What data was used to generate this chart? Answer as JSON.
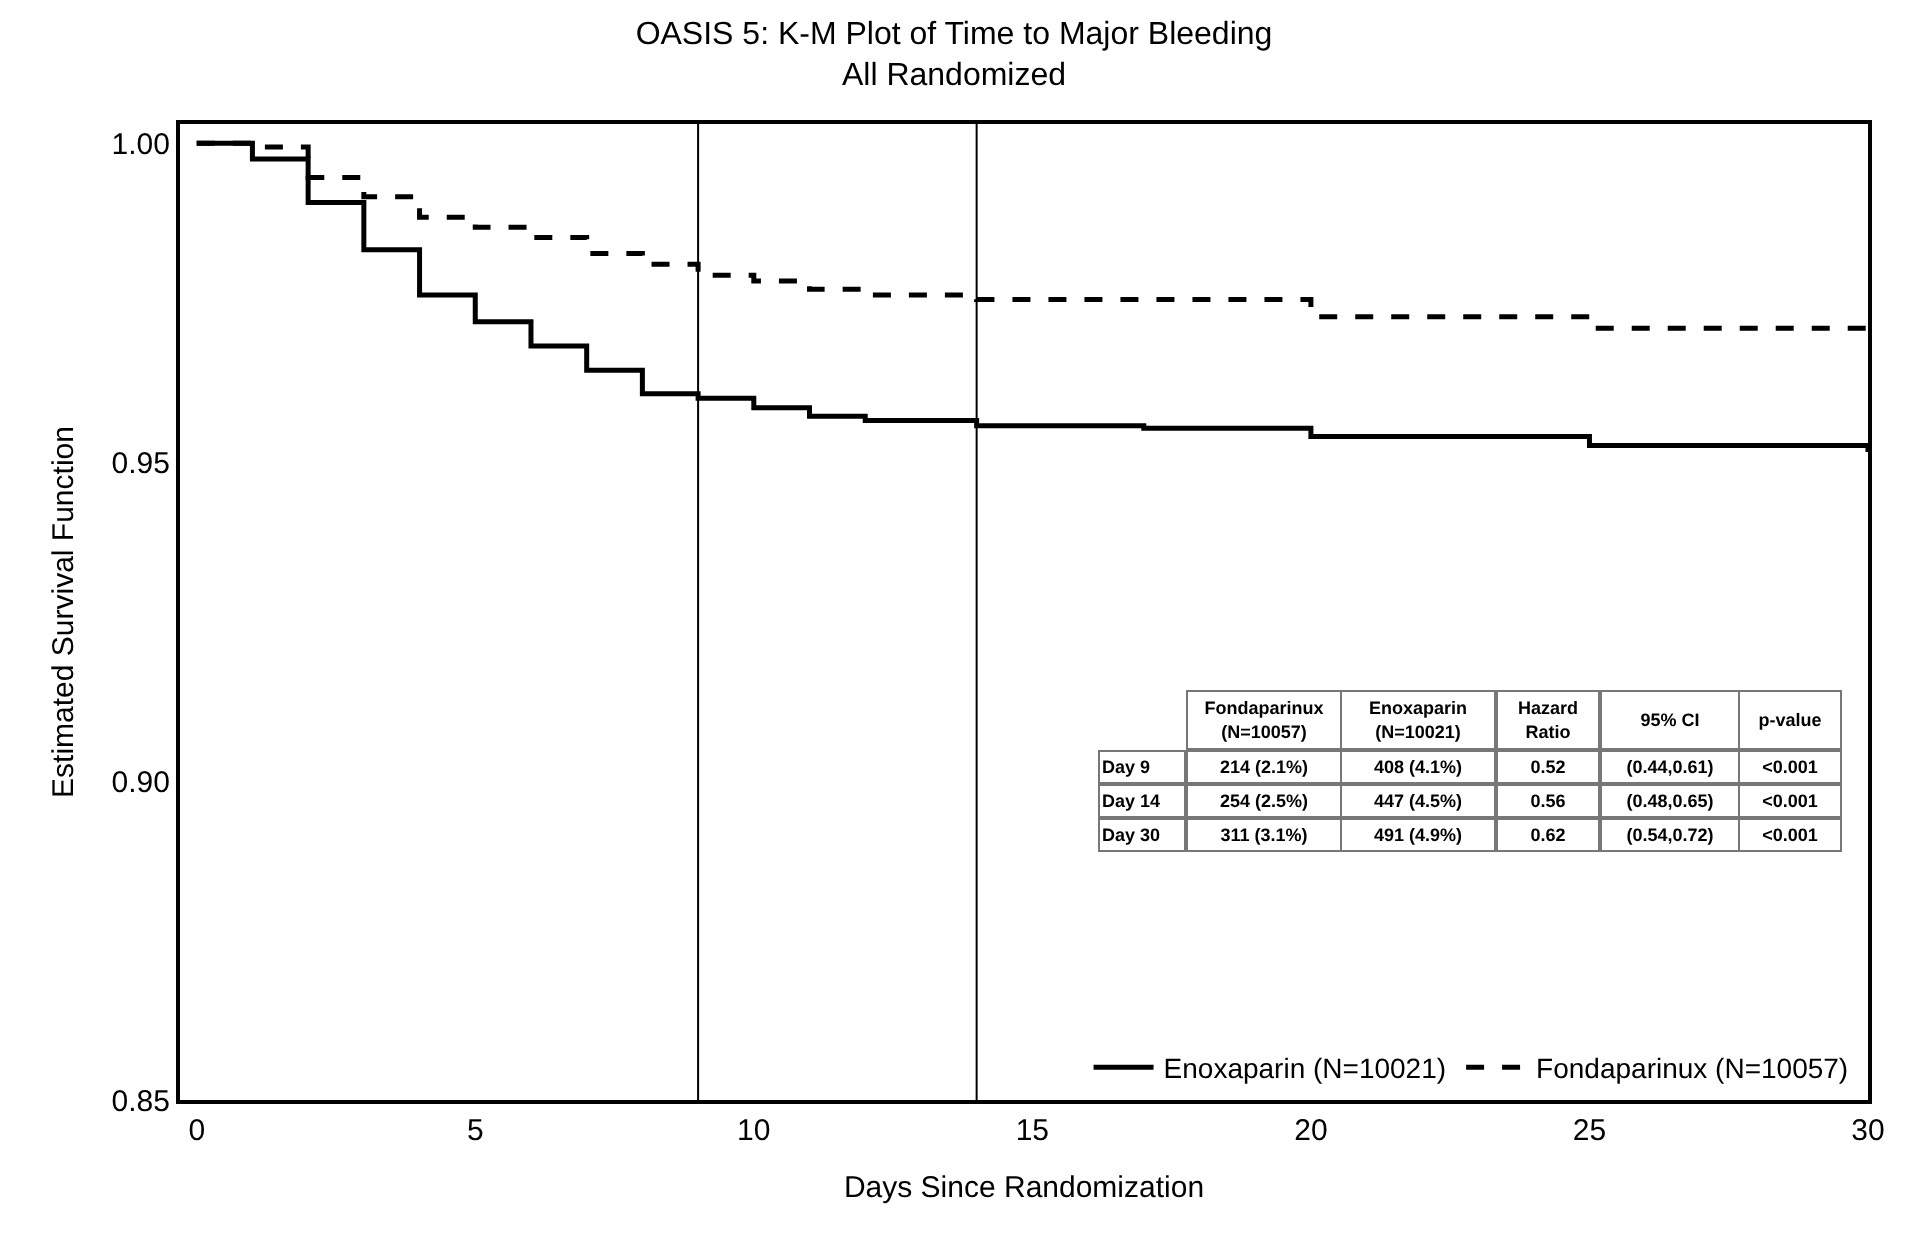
{
  "chart_data": {
    "type": "step",
    "title": "OASIS 5: K-M Plot of Time to Major Bleeding\nAll Randomized",
    "xlabel": "Days Since Randomization",
    "ylabel": "Estimated Survival Function",
    "xlim": [
      -0.3,
      30
    ],
    "xticks": [
      0,
      5,
      10,
      15,
      20,
      25,
      30
    ],
    "ylim": [
      0.85,
      1.003
    ],
    "yticks": [
      {
        "value": 0.85,
        "label": "0.85"
      },
      {
        "value": 0.9,
        "label": "0.90"
      },
      {
        "value": 0.95,
        "label": "0.95"
      },
      {
        "value": 1.0,
        "label": "1.00"
      }
    ],
    "legend": "bottom",
    "marker": "none",
    "series": [
      {
        "name": "Enoxaparin (N=10021)",
        "color": "#000000",
        "line_style": "solid",
        "x": [
          0,
          1,
          2,
          3,
          4,
          5,
          6,
          7,
          8,
          9,
          10,
          11,
          12,
          14,
          17,
          20,
          25,
          30
        ],
        "values": [
          1.0,
          0.9975,
          0.9907,
          0.9833,
          0.9762,
          0.972,
          0.9682,
          0.9644,
          0.9607,
          0.96,
          0.9585,
          0.9572,
          0.9565,
          0.9557,
          0.9553,
          0.954,
          0.9526,
          0.9516
        ]
      },
      {
        "name": "Fondaparinux (N=10057)",
        "color": "#000000",
        "line_style": "dashed",
        "x": [
          0,
          1,
          2,
          3,
          4,
          5,
          6,
          7,
          8,
          9,
          10,
          11,
          12,
          14,
          20,
          25,
          30
        ],
        "values": [
          1.0,
          0.9994,
          0.9946,
          0.9916,
          0.9884,
          0.9868,
          0.9852,
          0.9827,
          0.981,
          0.9793,
          0.9784,
          0.9771,
          0.9762,
          0.9755,
          0.9728,
          0.971,
          0.9699
        ]
      }
    ],
    "ref_lines": [
      {
        "axis": "x",
        "value": 9,
        "label": null,
        "color": "#000000"
      },
      {
        "axis": "x",
        "value": 14,
        "label": null,
        "color": "#000000"
      }
    ],
    "annotations": [
      "Fondaparinux\n(N=10057)",
      "Enoxaparin\n(N=10021)",
      "Hazard\nRatio",
      "95% CI",
      "p-value",
      "Day 9",
      "214 (2.1%)",
      "408 (4.1%)",
      "0.52",
      "(0.44,0.61)",
      "<0.001",
      "Day 14",
      "254 (2.5%)",
      "447 (4.5%)",
      "0.56",
      "(0.48,0.65)",
      "<0.001",
      "Day 30",
      "311 (3.1%)",
      "491 (4.9%)",
      "0.62",
      "(0.54,0.72)",
      "<0.001"
    ]
  }
}
